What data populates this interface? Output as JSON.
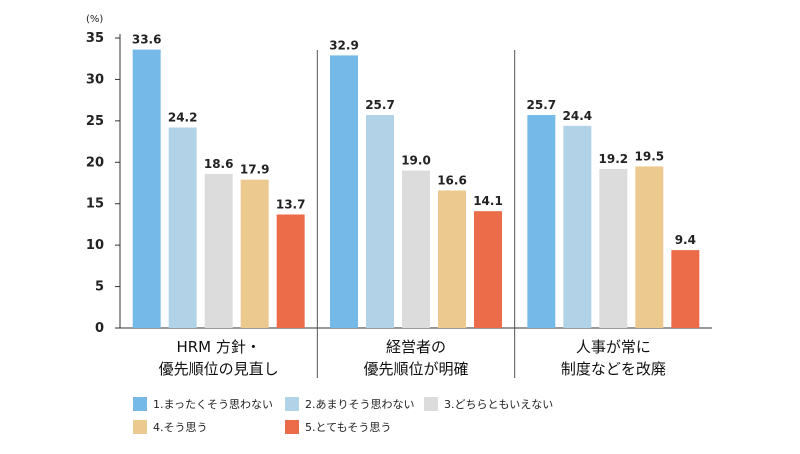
{
  "chart_data": {
    "type": "bar",
    "unit_label": "(%)",
    "ylim": [
      0,
      35
    ],
    "yticks": [
      0,
      5,
      10,
      15,
      20,
      25,
      30,
      35
    ],
    "groups": [
      {
        "label_lines": [
          "HRM 方針・",
          "優先順位の見直し"
        ]
      },
      {
        "label_lines": [
          "経営者の",
          "優先順位が明確"
        ]
      },
      {
        "label_lines": [
          "人事が常に",
          "制度などを改廃"
        ]
      }
    ],
    "series": [
      {
        "name": "1.まったくそう思わない",
        "color": "#74b9e8",
        "values": [
          33.6,
          32.9,
          25.7
        ]
      },
      {
        "name": "2.あまりそう思わない",
        "color": "#b2d2e8",
        "values": [
          24.2,
          25.7,
          24.4
        ]
      },
      {
        "name": "3.どちらともいえない",
        "color": "#dcdcdc",
        "values": [
          18.6,
          19.0,
          19.2
        ]
      },
      {
        "name": "4.そう思う",
        "color": "#ebc98f",
        "values": [
          17.9,
          16.6,
          19.5
        ]
      },
      {
        "name": "5.とてもそう思う",
        "color": "#ec6c4a",
        "values": [
          13.7,
          14.1,
          9.4
        ]
      }
    ],
    "value_labels": [
      [
        "33.6",
        "32.9",
        "25.7"
      ],
      [
        "24.2",
        "25.7",
        "24.4"
      ],
      [
        "18.6",
        "19.0",
        "19.2"
      ],
      [
        "17.9",
        "16.6",
        "19.5"
      ],
      [
        "13.7",
        "14.1",
        "9.4"
      ]
    ],
    "grid": false,
    "legend_position": "bottom"
  }
}
